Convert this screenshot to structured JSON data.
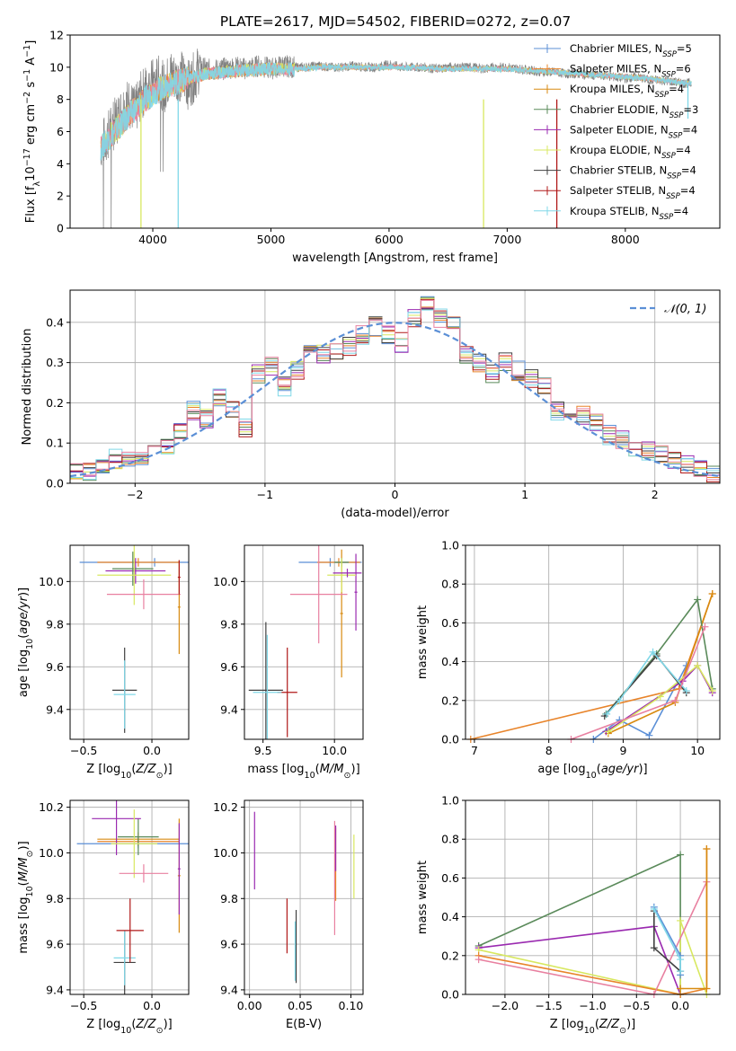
{
  "title": "PLATE=2617, MJD=54502, FIBERID=0272, z=0.07",
  "palette": {
    "Chabrier MILES": "#5b8fd6",
    "Salpeter MILES": "#e8842a",
    "Kroupa MILES": "#d88a10",
    "Chabrier ELODIE": "#5a8a5a",
    "Salpeter ELODIE": "#9a2ab0",
    "Kroupa ELODIE": "#d8e860",
    "Chabrier STELIB": "#404040",
    "Salpeter STELIB": "#b01818",
    "Kroupa STELIB": "#80d8e8",
    "Salpeter pink": "#e880a0",
    "grid": "#b0b0b0",
    "gaussian": "#5b8fd6"
  },
  "chart_data": [
    {
      "id": "spectrum",
      "type": "line",
      "title": "PLATE=2617, MJD=54502, FIBERID=0272, z=0.07",
      "xlabel": "wavelength [Angstrom, rest frame]",
      "ylabel": "Flux [f_λ 10^-17 erg cm^-2 s^-1 A^-1]",
      "xlim": [
        3300,
        8800
      ],
      "ylim": [
        0,
        12
      ],
      "xticks": [
        4000,
        5000,
        6000,
        7000,
        8000
      ],
      "yticks": [
        0,
        2,
        4,
        6,
        8,
        10,
        12
      ],
      "legend": "top-right",
      "legend_entries": [
        {
          "label": "Chabrier MILES, N",
          "sub": "SSP",
          "suffix": "=5",
          "color": "#5b8fd6"
        },
        {
          "label": "Salpeter MILES, N",
          "sub": "SSP",
          "suffix": "=6",
          "color": "#e8842a"
        },
        {
          "label": "Kroupa MILES, N",
          "sub": "SSP",
          "suffix": "=4",
          "color": "#d88a10"
        },
        {
          "label": "Chabrier ELODIE, N",
          "sub": "SSP",
          "suffix": "=3",
          "color": "#5a8a5a"
        },
        {
          "label": "Salpeter ELODIE, N",
          "sub": "SSP",
          "suffix": "=4",
          "color": "#9a2ab0"
        },
        {
          "label": "Kroupa ELODIE, N",
          "sub": "SSP",
          "suffix": "=4",
          "color": "#d8e860"
        },
        {
          "label": "Chabrier STELIB, N",
          "sub": "SSP",
          "suffix": "=4",
          "color": "#404040"
        },
        {
          "label": "Salpeter STELIB, N",
          "sub": "SSP",
          "suffix": "=4",
          "color": "#b01818"
        },
        {
          "label": "Kroupa STELIB, N",
          "sub": "SSP",
          "suffix": "=4",
          "color": "#80d8e8"
        }
      ],
      "data_trace": {
        "color": "#808080",
        "wavelength": [
          3560,
          3600,
          3650,
          3700,
          3750,
          3800,
          3850,
          3900,
          3950,
          4000,
          4050,
          4100,
          4150,
          4200,
          4250,
          4300,
          4350,
          4400,
          4500,
          4600,
          4700,
          4800,
          4900,
          5000,
          5100,
          5200,
          5300,
          5400,
          5500,
          5600,
          5700,
          5800,
          5900,
          6000,
          6100,
          6200,
          6300,
          6400,
          6500,
          6600,
          6700,
          6800,
          6900,
          7000,
          7100,
          7200,
          7300,
          7400,
          7500,
          7600,
          7700,
          7800,
          7900,
          8000,
          8100,
          8200,
          8300,
          8400,
          8500,
          8560
        ],
        "flux": [
          5.2,
          5.5,
          6.2,
          6.8,
          7.5,
          7.8,
          7.2,
          8.2,
          8.8,
          9.0,
          9.2,
          8.7,
          9.6,
          9.3,
          9.5,
          8.9,
          9.4,
          10.0,
          9.8,
          9.9,
          10.0,
          9.9,
          10.1,
          9.9,
          10.1,
          10.0,
          10.0,
          10.1,
          10.0,
          10.0,
          10.1,
          10.0,
          10.0,
          10.2,
          10.0,
          10.0,
          10.0,
          9.9,
          10.0,
          10.0,
          10.0,
          9.9,
          10.0,
          10.0,
          9.9,
          9.8,
          9.7,
          9.7,
          9.6,
          9.6,
          9.5,
          9.5,
          9.4,
          9.3,
          9.4,
          9.2,
          9.2,
          9.1,
          9.0,
          9.0
        ]
      },
      "model_trace": {
        "color": "#80d8e8",
        "wavelength": [
          3560,
          3650,
          3750,
          3850,
          3950,
          4050,
          4150,
          4250,
          4350,
          4450,
          4600,
          4800,
          5000,
          5200,
          5400,
          5600,
          5800,
          6000,
          6200,
          6400,
          6600,
          6800,
          7000,
          7200,
          7400,
          7600,
          7800,
          8000,
          8200,
          8400,
          8560
        ],
        "flux": [
          5.0,
          5.8,
          6.6,
          7.4,
          8.1,
          8.6,
          8.9,
          9.2,
          9.4,
          9.6,
          9.7,
          9.8,
          9.9,
          9.9,
          10.0,
          10.0,
          10.0,
          10.0,
          10.0,
          9.9,
          9.9,
          9.9,
          9.9,
          9.8,
          9.7,
          9.6,
          9.5,
          9.4,
          9.3,
          9.1,
          9.0
        ]
      },
      "absorption_dips": [
        {
          "x": 3900,
          "y": 0.0,
          "color": "#d8e860"
        },
        {
          "x": 4215,
          "y": 0.0,
          "color": "#80d8e8"
        },
        {
          "x": 6800,
          "y": 0.0,
          "color": "#d8e860"
        },
        {
          "x": 7420,
          "y": 0.0,
          "color": "#b01818"
        },
        {
          "x": 8530,
          "y": 6.8,
          "color": "#80d8e8"
        }
      ]
    },
    {
      "id": "residuals",
      "type": "line",
      "xlabel": "(data-model)/error",
      "ylabel": "Normed distribution",
      "xlim": [
        -2.5,
        2.5
      ],
      "ylim": [
        0,
        0.48
      ],
      "xticks": [
        -2,
        -1,
        0,
        1,
        2
      ],
      "yticks": [
        0.0,
        0.1,
        0.2,
        0.3,
        0.4
      ],
      "legend": "top-right",
      "gaussian_label": "𝒩(0, 1)",
      "bins": [
        -2.5,
        -2.4,
        -2.3,
        -2.2,
        -2.1,
        -2.0,
        -1.9,
        -1.8,
        -1.7,
        -1.6,
        -1.5,
        -1.4,
        -1.3,
        -1.2,
        -1.1,
        -1.0,
        -0.9,
        -0.8,
        -0.7,
        -0.6,
        -0.5,
        -0.4,
        -0.3,
        -0.2,
        -0.1,
        0.0,
        0.1,
        0.2,
        0.3,
        0.4,
        0.5,
        0.6,
        0.7,
        0.8,
        0.9,
        1.0,
        1.1,
        1.2,
        1.3,
        1.4,
        1.5,
        1.6,
        1.7,
        1.8,
        1.9,
        2.0,
        2.1,
        2.2,
        2.3,
        2.4,
        2.5
      ],
      "hist_base": [
        0.03,
        0.03,
        0.04,
        0.06,
        0.06,
        0.07,
        0.08,
        0.09,
        0.13,
        0.18,
        0.16,
        0.21,
        0.18,
        0.14,
        0.27,
        0.29,
        0.24,
        0.28,
        0.33,
        0.32,
        0.33,
        0.34,
        0.37,
        0.39,
        0.37,
        0.35,
        0.41,
        0.44,
        0.41,
        0.39,
        0.32,
        0.3,
        0.27,
        0.3,
        0.28,
        0.26,
        0.24,
        0.18,
        0.18,
        0.17,
        0.15,
        0.12,
        0.11,
        0.09,
        0.08,
        0.07,
        0.06,
        0.05,
        0.04,
        0.02
      ]
    },
    {
      "id": "age-vs-Z",
      "type": "scatter",
      "xlabel": "Z [log10(Z/Z⊙)]",
      "ylabel": "age  [log10(age/yr)]",
      "xlim": [
        -0.6,
        0.27
      ],
      "ylim": [
        9.26,
        10.17
      ],
      "xticks": [
        -0.5,
        0.0
      ],
      "yticks": [
        9.4,
        9.6,
        9.8,
        10.0
      ],
      "points": [
        {
          "x": 0.02,
          "y": 10.09,
          "xerr": 0.55,
          "yerr": 0.02,
          "color": "#5b8fd6"
        },
        {
          "x": -0.1,
          "y": 10.09,
          "xerr": 0.3,
          "yerr": 0.02,
          "color": "#e8842a"
        },
        {
          "x": -0.12,
          "y": 10.05,
          "xerr": 0.22,
          "yerr": 0.06,
          "color": "#9a2ab0"
        },
        {
          "x": -0.14,
          "y": 10.06,
          "xerr": 0.15,
          "yerr": 0.08,
          "color": "#5a8a5a"
        },
        {
          "x": -0.13,
          "y": 10.03,
          "xerr": 0.27,
          "yerr": 0.14,
          "color": "#d8e860"
        },
        {
          "x": -0.06,
          "y": 9.94,
          "xerr": 0.27,
          "yerr": 0.07,
          "color": "#e880a0"
        },
        {
          "x": 0.2,
          "y": 9.88,
          "xerr": 0.01,
          "yerr": 0.22,
          "color": "#d88a10"
        },
        {
          "x": -0.2,
          "y": 9.49,
          "xerr": 0.09,
          "yerr": 0.2,
          "color": "#404040"
        },
        {
          "x": -0.2,
          "y": 9.47,
          "xerr": 0.08,
          "yerr": 0.16,
          "color": "#80d8e8"
        },
        {
          "x": 0.2,
          "y": 10.02,
          "xerr": 0.01,
          "yerr": 0.08,
          "color": "#b01818"
        }
      ]
    },
    {
      "id": "age-vs-mass",
      "type": "scatter",
      "xlabel": "mass [log10(M/M⊙)]",
      "ylabel": "",
      "xlim": [
        9.37,
        10.2
      ],
      "ylim": [
        9.26,
        10.17
      ],
      "xticks": [
        9.5,
        10.0
      ],
      "yticks": [
        9.4,
        9.6,
        9.8,
        10.0
      ],
      "points": [
        {
          "x": 9.97,
          "y": 10.09,
          "xerr": 0.22,
          "yerr": 0.02,
          "color": "#5b8fd6"
        },
        {
          "x": 10.03,
          "y": 10.09,
          "xerr": 0.15,
          "yerr": 0.02,
          "color": "#e8842a"
        },
        {
          "x": 10.05,
          "y": 9.85,
          "xerr": 0.01,
          "yerr": 0.3,
          "color": "#d88a10"
        },
        {
          "x": 10.05,
          "y": 10.09,
          "xerr": 0.05,
          "yerr": 0.02,
          "color": "#5a8a5a"
        },
        {
          "x": 10.15,
          "y": 9.95,
          "xerr": 0.01,
          "yerr": 0.18,
          "color": "#9a2ab0"
        },
        {
          "x": 10.05,
          "y": 10.03,
          "xerr": 0.1,
          "yerr": 0.08,
          "color": "#d8e860"
        },
        {
          "x": 9.89,
          "y": 9.94,
          "xerr": 0.2,
          "yerr": 0.23,
          "color": "#e880a0"
        },
        {
          "x": 9.52,
          "y": 9.49,
          "xerr": 0.12,
          "yerr": 0.32,
          "color": "#404040"
        },
        {
          "x": 9.67,
          "y": 9.48,
          "xerr": 0.07,
          "yerr": 0.21,
          "color": "#b01818"
        },
        {
          "x": 9.53,
          "y": 9.48,
          "xerr": 0.1,
          "yerr": 0.27,
          "color": "#80d8e8"
        },
        {
          "x": 10.09,
          "y": 10.04,
          "xerr": 0.1,
          "yerr": 0.02,
          "color": "#9a2ab0"
        }
      ]
    },
    {
      "id": "mass-weight-vs-age",
      "type": "line",
      "xlabel": "age  [log10(age/yr)]",
      "ylabel": "mass weight",
      "xlim": [
        6.88,
        10.3
      ],
      "ylim": [
        0.0,
        1.0
      ],
      "xticks": [
        7,
        8,
        9,
        10
      ],
      "yticks": [
        0.0,
        0.2,
        0.4,
        0.6,
        0.8,
        1.0
      ],
      "series": [
        {
          "color": "#5b8fd6",
          "x": [
            8.6,
            8.95,
            9.35,
            9.85
          ],
          "y": [
            0.0,
            0.1,
            0.02,
            0.38
          ]
        },
        {
          "color": "#e8842a",
          "x": [
            6.95,
            9.75,
            10.2
          ],
          "y": [
            0.0,
            0.26,
            0.75
          ]
        },
        {
          "color": "#d88a10",
          "x": [
            8.8,
            9.7,
            10.2
          ],
          "y": [
            0.03,
            0.19,
            0.75
          ]
        },
        {
          "color": "#5a8a5a",
          "x": [
            8.77,
            9.45,
            10.0,
            10.2
          ],
          "y": [
            0.13,
            0.44,
            0.72,
            0.26
          ]
        },
        {
          "color": "#9a2ab0",
          "x": [
            8.77,
            9.8,
            10.0,
            10.2
          ],
          "y": [
            0.04,
            0.3,
            0.38,
            0.24
          ]
        },
        {
          "color": "#d8e860",
          "x": [
            8.8,
            9.5,
            10.0,
            10.2
          ],
          "y": [
            0.04,
            0.22,
            0.38,
            0.25
          ]
        },
        {
          "color": "#404040",
          "x": [
            8.75,
            9.45,
            9.85
          ],
          "y": [
            0.12,
            0.43,
            0.24
          ]
        },
        {
          "color": "#80d8e8",
          "x": [
            8.78,
            8.95,
            9.4,
            9.85
          ],
          "y": [
            0.13,
            0.2,
            0.45,
            0.25
          ]
        },
        {
          "color": "#e880a0",
          "x": [
            8.3,
            9.7,
            10.1
          ],
          "y": [
            0.0,
            0.2,
            0.58
          ]
        }
      ]
    },
    {
      "id": "mass-vs-Z",
      "type": "scatter",
      "xlabel": "Z [log10(Z/Z⊙)]",
      "ylabel": "mass [log10(M/M⊙)]",
      "xlim": [
        -0.6,
        0.27
      ],
      "ylim": [
        9.38,
        10.23
      ],
      "xticks": [
        -0.5,
        0.0
      ],
      "yticks": [
        9.4,
        9.6,
        9.8,
        10.0,
        10.2
      ],
      "points": [
        {
          "x": -0.1,
          "y": 10.04,
          "xerr": 0.45,
          "yerr": 0.02,
          "color": "#5b8fd6"
        },
        {
          "x": -0.1,
          "y": 10.05,
          "xerr": 0.3,
          "yerr": 0.02,
          "color": "#e8842a"
        },
        {
          "x": -0.1,
          "y": 10.06,
          "xerr": 0.3,
          "yerr": 0.03,
          "color": "#d88a10"
        },
        {
          "x": -0.1,
          "y": 10.07,
          "xerr": 0.15,
          "yerr": 0.08,
          "color": "#5a8a5a"
        },
        {
          "x": -0.26,
          "y": 10.15,
          "xerr": 0.18,
          "yerr": 0.16,
          "color": "#9a2ab0"
        },
        {
          "x": -0.13,
          "y": 10.04,
          "xerr": 0.17,
          "yerr": 0.15,
          "color": "#d8e860"
        },
        {
          "x": -0.06,
          "y": 9.91,
          "xerr": 0.18,
          "yerr": 0.04,
          "color": "#e880a0"
        },
        {
          "x": 0.2,
          "y": 9.9,
          "xerr": 0.01,
          "yerr": 0.25,
          "color": "#d88a10"
        },
        {
          "x": -0.2,
          "y": 9.52,
          "xerr": 0.08,
          "yerr": 0.14,
          "color": "#404040"
        },
        {
          "x": -0.2,
          "y": 9.54,
          "xerr": 0.08,
          "yerr": 0.12,
          "color": "#80d8e8"
        },
        {
          "x": -0.16,
          "y": 9.66,
          "xerr": 0.1,
          "yerr": 0.14,
          "color": "#b01818"
        },
        {
          "x": 0.2,
          "y": 9.93,
          "xerr": 0.01,
          "yerr": 0.2,
          "color": "#9a2ab0"
        }
      ]
    },
    {
      "id": "mass-vs-EBV",
      "type": "scatter",
      "xlabel": "E(B-V)",
      "ylabel": "",
      "xlim": [
        -0.005,
        0.112
      ],
      "ylim": [
        9.38,
        10.23
      ],
      "xticks": [
        0.0,
        0.05,
        0.1
      ],
      "yticks": [
        9.4,
        9.6,
        9.8,
        10.0,
        10.2
      ],
      "points": [
        {
          "x": 0.005,
          "y": 10.01,
          "yerr": 0.17,
          "color": "#9a2ab0"
        },
        {
          "x": 0.037,
          "y": 9.68,
          "yerr": 0.12,
          "color": "#b01818"
        },
        {
          "x": 0.046,
          "y": 9.59,
          "yerr": 0.16,
          "color": "#404040"
        },
        {
          "x": 0.045,
          "y": 9.57,
          "yerr": 0.13,
          "color": "#80d8e8"
        },
        {
          "x": 0.084,
          "y": 9.89,
          "yerr": 0.25,
          "color": "#e880a0"
        },
        {
          "x": 0.085,
          "y": 9.95,
          "yerr": 0.16,
          "color": "#e8842a"
        },
        {
          "x": 0.085,
          "y": 10.02,
          "yerr": 0.1,
          "color": "#9a2ab0"
        },
        {
          "x": 0.103,
          "y": 9.94,
          "yerr": 0.14,
          "color": "#d8e860"
        }
      ]
    },
    {
      "id": "mass-weight-vs-Z",
      "type": "line",
      "xlabel": "Z [log10(Z/Z⊙)]",
      "ylabel": "mass weight",
      "xlim": [
        -2.45,
        0.45
      ],
      "ylim": [
        0.0,
        1.0
      ],
      "xticks": [
        -2.0,
        -1.5,
        -1.0,
        -0.5,
        0.0
      ],
      "yticks": [
        0.0,
        0.2,
        0.4,
        0.6,
        0.8,
        1.0
      ],
      "series": [
        {
          "color": "#5a8a5a",
          "x": [
            -2.3,
            0.0,
            0.0
          ],
          "y": [
            0.25,
            0.72,
            0.0
          ]
        },
        {
          "color": "#9a2ab0",
          "x": [
            -2.3,
            -0.3,
            0.0
          ],
          "y": [
            0.24,
            0.35,
            0.0
          ]
        },
        {
          "color": "#d8e860",
          "x": [
            -2.3,
            0.0,
            0.0,
            0.3
          ],
          "y": [
            0.23,
            0.0,
            0.38,
            0.0
          ]
        },
        {
          "color": "#e8842a",
          "x": [
            -2.3,
            0.0,
            0.3,
            0.3
          ],
          "y": [
            0.2,
            0.0,
            0.03,
            0.75
          ]
        },
        {
          "color": "#e880a0",
          "x": [
            -2.3,
            -0.3,
            0.3
          ],
          "y": [
            0.18,
            0.0,
            0.58
          ]
        },
        {
          "color": "#404040",
          "x": [
            -0.3,
            -0.3,
            0.0
          ],
          "y": [
            0.43,
            0.24,
            0.12
          ]
        },
        {
          "color": "#5b8fd6",
          "x": [
            -0.3,
            0.0,
            0.0
          ],
          "y": [
            0.45,
            0.2,
            0.1
          ]
        },
        {
          "color": "#80d8e8",
          "x": [
            -0.3,
            0.0,
            0.0
          ],
          "y": [
            0.44,
            0.18,
            0.12
          ]
        },
        {
          "color": "#d88a10",
          "x": [
            0.3,
            0.3,
            0.0
          ],
          "y": [
            0.75,
            0.03,
            0.03
          ]
        }
      ]
    }
  ]
}
